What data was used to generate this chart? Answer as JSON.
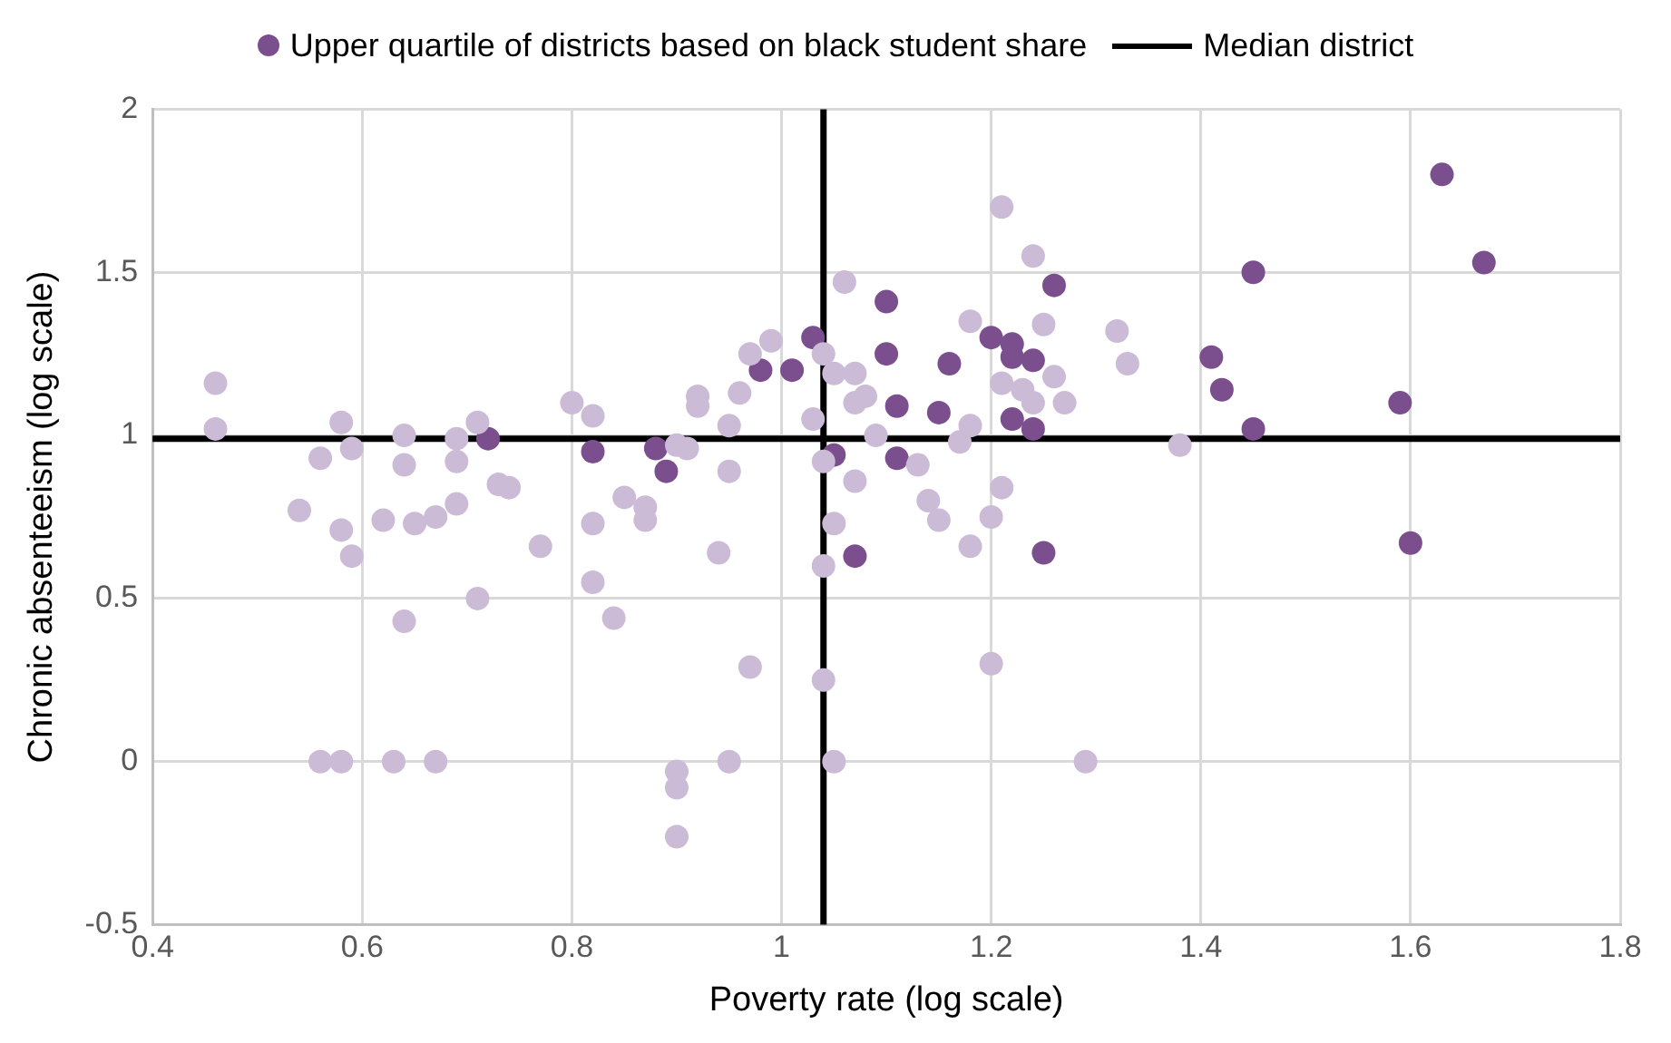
{
  "chart_data": {
    "type": "scatter",
    "xlabel": "Poverty rate (log scale)",
    "ylabel": "Chronic absenteeism (log scale)",
    "xlim": [
      0.4,
      1.8
    ],
    "xticks": [
      0.4,
      0.6,
      0.8,
      1,
      1.2,
      1.4,
      1.6,
      1.8
    ],
    "ylim": [
      -0.5,
      2
    ],
    "yticks": [
      -0.5,
      0,
      0.5,
      1,
      1.5,
      2
    ],
    "grid": true,
    "legend": "top",
    "marker": "circle",
    "series": [
      {
        "color": "#cbbbd6",
        "x": [
          0.46,
          0.46,
          0.58,
          0.56,
          0.59,
          0.54,
          0.58,
          0.59,
          0.62,
          0.64,
          0.64,
          0.65,
          0.67,
          0.64,
          0.69,
          0.69,
          0.69,
          0.71,
          0.73,
          0.74,
          0.77,
          0.71,
          0.8,
          0.82,
          0.82,
          0.85,
          0.87,
          0.87,
          0.82,
          0.84,
          0.56,
          0.58,
          0.63,
          0.67,
          1.21,
          1.24,
          1.06,
          1.18,
          1.25,
          1.32,
          0.97,
          0.99,
          1.04,
          1.05,
          1.07,
          1.21,
          1.26,
          1.27,
          0.92,
          0.92,
          0.96,
          0.95,
          1.03,
          1.07,
          1.08,
          1.09,
          1.17,
          1.18,
          1.23,
          1.24,
          0.9,
          0.91,
          0.95,
          1.04,
          1.07,
          1.13,
          1.14,
          1.15,
          1.21,
          1.2,
          1.05,
          1.18,
          0.94,
          1.04,
          0.97,
          1.04,
          1.2,
          0.95,
          1.05,
          1.29,
          0.9,
          0.9,
          0.9,
          1.33,
          1.38
        ],
        "values": [
          1.16,
          1.02,
          1.04,
          0.93,
          0.96,
          0.77,
          0.71,
          0.63,
          0.74,
          1.0,
          0.91,
          0.73,
          0.75,
          0.43,
          0.79,
          0.92,
          0.99,
          1.04,
          0.85,
          0.84,
          0.66,
          0.5,
          1.1,
          1.06,
          0.73,
          0.81,
          0.78,
          0.74,
          0.55,
          0.44,
          0,
          0,
          0,
          0,
          1.7,
          1.55,
          1.47,
          1.35,
          1.34,
          1.32,
          1.25,
          1.29,
          1.25,
          1.19,
          1.19,
          1.16,
          1.18,
          1.1,
          1.12,
          1.09,
          1.13,
          1.03,
          1.05,
          1.1,
          1.12,
          1.0,
          0.98,
          1.03,
          1.14,
          1.1,
          0.97,
          0.96,
          0.89,
          0.92,
          0.86,
          0.91,
          0.8,
          0.74,
          0.84,
          0.75,
          0.73,
          0.66,
          0.64,
          0.6,
          0.29,
          0.25,
          0.3,
          0,
          0,
          0,
          -0.03,
          -0.08,
          -0.23,
          1.22,
          0.97
        ]
      },
      {
        "name": "Upper quartile of districts based on black student share",
        "color": "#7b4f8e",
        "x": [
          0.72,
          0.82,
          0.88,
          0.89,
          0.98,
          1.01,
          1.03,
          1.05,
          1.07,
          1.1,
          1.1,
          1.11,
          1.11,
          1.15,
          1.16,
          1.2,
          1.22,
          1.22,
          1.22,
          1.24,
          1.24,
          1.25,
          1.26,
          1.41,
          1.42,
          1.45,
          1.45,
          1.59,
          1.6,
          1.63,
          1.67
        ],
        "values": [
          0.99,
          0.95,
          0.96,
          0.89,
          1.2,
          1.2,
          1.3,
          0.94,
          0.63,
          1.41,
          1.25,
          1.09,
          0.93,
          1.07,
          1.22,
          1.3,
          1.28,
          1.24,
          1.05,
          1.23,
          1.02,
          0.64,
          1.46,
          1.24,
          1.14,
          1.5,
          1.02,
          1.1,
          0.67,
          1.8,
          1.53
        ]
      }
    ],
    "ref_lines": [
      {
        "axis": "y",
        "value": 0.99,
        "label": "Median district",
        "color": "#000000"
      },
      {
        "axis": "x",
        "value": 1.04,
        "color": "#000000"
      }
    ]
  }
}
